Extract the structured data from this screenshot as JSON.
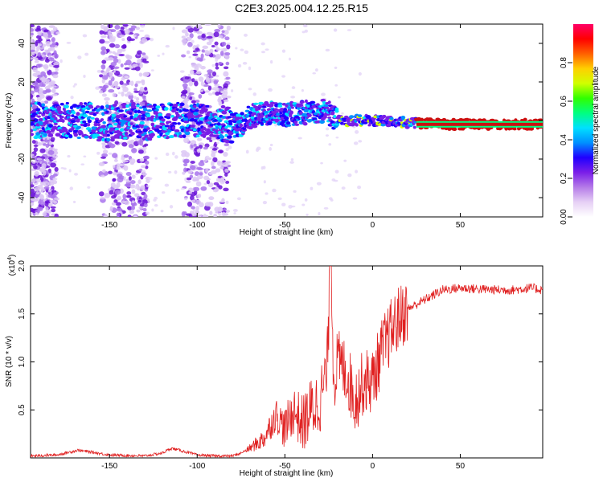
{
  "title": "C2E3.2025.004.12.25.R15",
  "colors": {
    "snr_line": "#e02020",
    "spectro_core": "#cc1010",
    "background": "#ffffff"
  },
  "chart_data": [
    {
      "type": "heatmap",
      "xlabel": "Height of straight line (km)",
      "ylabel": "Frequency (Hz)",
      "xlim": [
        -195,
        97
      ],
      "ylim": [
        -50,
        50
      ],
      "xticks": [
        -150,
        -100,
        -50,
        0,
        50
      ],
      "yticks": [
        -40,
        -20,
        0,
        20,
        40
      ],
      "colorbar": {
        "label": "Normalized spectral amplitude",
        "range": [
          0,
          1
        ],
        "ticks": [
          "0.00",
          "0.2",
          "0.4",
          "0.6",
          "0.8"
        ],
        "colormap": [
          "#ffffff",
          "#e6d0f5",
          "#b57be8",
          "#7a1ee8",
          "#2000ff",
          "#0090ff",
          "#00e0ff",
          "#00ff80",
          "#30ff00",
          "#d0ff00",
          "#ffd000",
          "#ff6000",
          "#ff0000",
          "#ff0066"
        ]
      },
      "ridge": {
        "x": [
          -175,
          -160,
          -155,
          -140,
          -130,
          -115,
          -105,
          -90,
          -80,
          -75,
          -70,
          -60,
          -50,
          -40,
          -30,
          -25,
          -20,
          0,
          20,
          40,
          60,
          80,
          97
        ],
        "y": [
          0,
          0,
          -2,
          0,
          -1,
          0,
          1,
          0,
          -3,
          -2,
          2,
          4,
          3,
          4,
          5,
          4,
          0,
          0,
          -1,
          -2,
          -2,
          -2,
          -2
        ]
      }
    },
    {
      "type": "line",
      "xlabel": "Height of straight line (km)",
      "ylabel": "SNR (10 * v/v)",
      "scale_label": "(x10",
      "scale_exp": "4",
      "xlim": [
        -195,
        97
      ],
      "ylim": [
        0,
        2.0
      ],
      "xticks": [
        -150,
        -100,
        -50,
        0,
        50
      ],
      "yticks": [
        "0.5",
        "1.0",
        "1.5",
        "2.0"
      ],
      "ytick_values": [
        0.5,
        1.0,
        1.5,
        2.0
      ],
      "series": [
        {
          "x": [
            -195,
            -180,
            -168,
            -160,
            -150,
            -130,
            -120,
            -115,
            -110,
            -100,
            -90,
            -80,
            -75,
            -70,
            -62,
            -55,
            -50,
            -45,
            -40,
            -35,
            -30,
            -26,
            -24,
            -22,
            -20,
            -15,
            -10,
            -5,
            0,
            5,
            10,
            15,
            20,
            25,
            30,
            35,
            40,
            45,
            50,
            60,
            70,
            80,
            90,
            97
          ],
          "y": [
            0.02,
            0.03,
            0.08,
            0.06,
            0.03,
            0.02,
            0.05,
            0.1,
            0.08,
            0.03,
            0.02,
            0.02,
            0.05,
            0.1,
            0.2,
            0.45,
            0.3,
            0.5,
            0.35,
            0.5,
            0.6,
            0.9,
            2.0,
            0.8,
            1.0,
            0.9,
            0.6,
            0.8,
            0.8,
            1.1,
            1.3,
            1.45,
            1.55,
            1.6,
            1.65,
            1.7,
            1.75,
            1.76,
            1.77,
            1.76,
            1.75,
            1.75,
            1.77,
            1.75
          ]
        }
      ]
    }
  ]
}
